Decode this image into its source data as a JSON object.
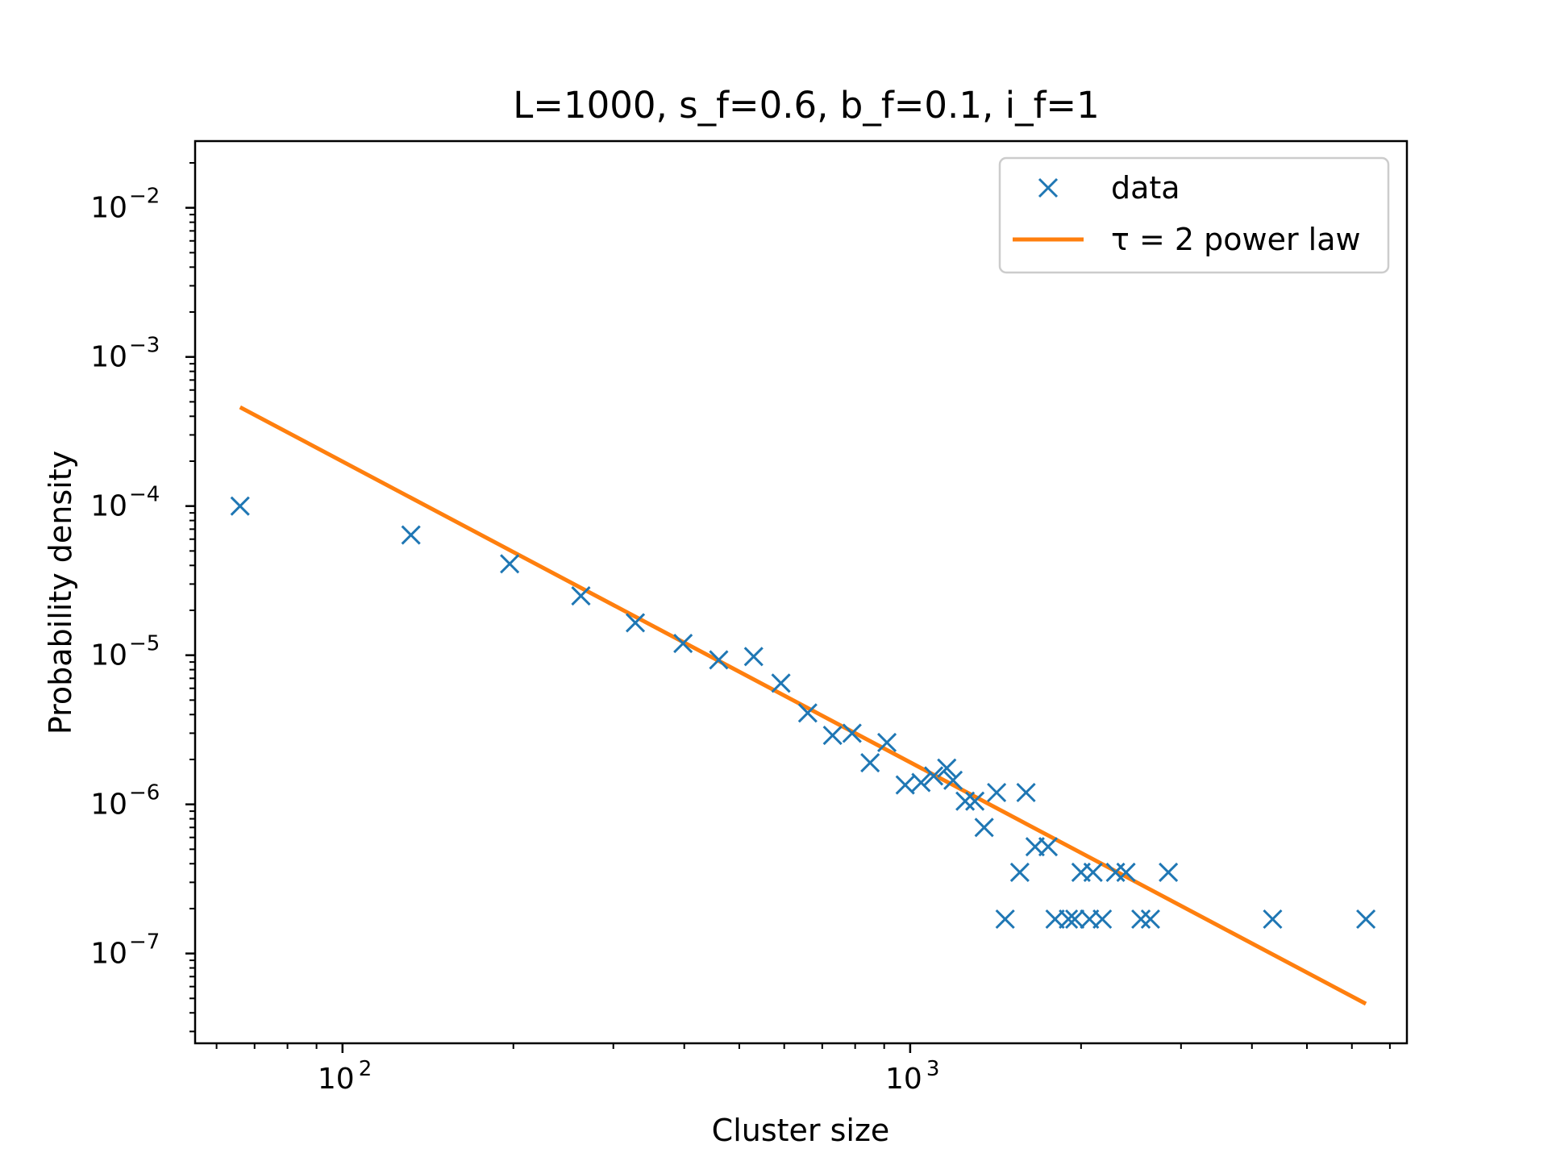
{
  "chart_data": {
    "type": "scatter",
    "title": "L=1000, s_f=0.6, b_f=0.1, i_f=1",
    "xlabel": "Cluster size",
    "ylabel": "Probability density",
    "xscale": "log",
    "yscale": "log",
    "xlim": [
      55,
      7500
    ],
    "ylim": [
      2.5e-08,
      0.028
    ],
    "xticks": [
      {
        "value": 100,
        "base": "10",
        "exp": "2"
      },
      {
        "value": 1000,
        "base": "10",
        "exp": "3"
      }
    ],
    "yticks": [
      {
        "value": 1e-07,
        "base": "10",
        "exp": "−7"
      },
      {
        "value": 1e-06,
        "base": "10",
        "exp": "−6"
      },
      {
        "value": 1e-05,
        "base": "10",
        "exp": "−5"
      },
      {
        "value": 0.0001,
        "base": "10",
        "exp": "−4"
      },
      {
        "value": 0.001,
        "base": "10",
        "exp": "−3"
      },
      {
        "value": 0.01,
        "base": "10",
        "exp": "−2"
      }
    ],
    "legend": {
      "position": "top-right",
      "entries": [
        {
          "label": "data",
          "marker": "x",
          "color": "#1f77b4"
        },
        {
          "label": "τ = 2 power law",
          "marker": "line",
          "color": "#ff7f0e"
        }
      ]
    },
    "series": [
      {
        "name": "data",
        "kind": "scatter",
        "marker": "x",
        "color": "#1f77b4",
        "x": [
          66,
          132,
          197,
          263,
          328,
          398,
          460,
          530,
          592,
          660,
          730,
          790,
          850,
          910,
          980,
          1045,
          1100,
          1160,
          1190,
          1250,
          1300,
          1350,
          1420,
          1470,
          1560,
          1600,
          1660,
          1750,
          1800,
          1900,
          1950,
          2000,
          2070,
          2100,
          2180,
          2300,
          2400,
          2550,
          2650,
          2850,
          4350,
          6350
        ],
        "y": [
          0.0001,
          6.4e-05,
          4.1e-05,
          2.5e-05,
          1.65e-05,
          1.2e-05,
          9.3e-06,
          9.8e-06,
          6.5e-06,
          4.1e-06,
          2.9e-06,
          3e-06,
          1.9e-06,
          2.6e-06,
          1.35e-06,
          1.4e-06,
          1.55e-06,
          1.75e-06,
          1.45e-06,
          1.05e-06,
          1.05e-06,
          7e-07,
          1.2e-06,
          1.7e-07,
          3.5e-07,
          1.2e-06,
          5.2e-07,
          5.2e-07,
          1.7e-07,
          1.7e-07,
          1.7e-07,
          3.5e-07,
          1.7e-07,
          3.5e-07,
          1.7e-07,
          3.5e-07,
          3.5e-07,
          1.7e-07,
          1.7e-07,
          3.5e-07,
          1.7e-07,
          1.7e-07
        ]
      },
      {
        "name": "τ = 2 power law",
        "kind": "line",
        "color": "#ff7f0e",
        "x": [
          66,
          6350
        ],
        "y": [
          0.00046,
          4.6e-08
        ]
      }
    ]
  }
}
